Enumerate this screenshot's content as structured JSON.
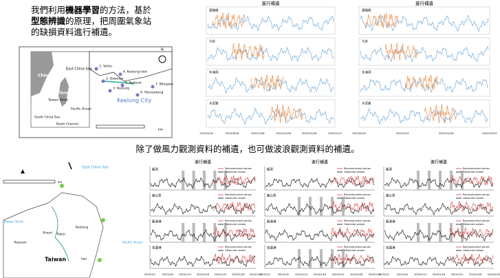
{
  "intro": {
    "l1a": "我們利用",
    "l1b": "機器學習",
    "l1c": "的方法，基於",
    "l2a": "型態辨識",
    "l2b": "的原理，把周圍氣象站",
    "l3": "的缺損資料進行補遺。"
  },
  "middle_text": "除了做風力觀測資料的補遺，也可做波浪觀測資料的補遺。",
  "top_panels": [
    {
      "title": "進行補遺",
      "labels": [
        "基隆嶼",
        "九份",
        "水湳洞",
        "大武崙"
      ],
      "dates": [
        "2022/9/16",
        "2022/9/26",
        "2022/10/6",
        "2022/10/16",
        "2022/10/26",
        "2022/11/5"
      ]
    },
    {
      "title": "進行補遺",
      "labels": [
        "基隆嶼",
        "九份",
        "水湳洞",
        "大武崙"
      ],
      "dates": [
        "2022/9/16",
        "2022/10/1",
        "2022/10/16",
        "2022/10/31"
      ]
    }
  ],
  "bottom_panels": [
    {
      "title": "進行補遺",
      "labels": [
        "龍洞",
        "龜山島",
        "蘇澳港",
        "花蓮港"
      ]
    },
    {
      "title": "進行補遺",
      "labels": [
        "龍洞",
        "龜山島",
        "蘇澳港",
        "花蓮港"
      ]
    },
    {
      "title": "進行補遺",
      "labels": [
        "龍洞",
        "龜山島",
        "蘇澳港",
        "花蓮港"
      ]
    }
  ],
  "legend": {
    "reconstructed": "Reconstructed values",
    "observed": "Observed values"
  },
  "bottom_dates": [
    "2023/1/1",
    "2023/1/6",
    "2023/1/11",
    "2023/1/16",
    "2023/1/21",
    "2023/1/26",
    "2023/1/31"
  ],
  "map1": {
    "china": "China",
    "ecs": "East China Sea",
    "strait": "Taiwan Strait",
    "taiwan": "Taiwan",
    "pacific": "Pacific Ocean",
    "scs": "South China Sea",
    "bashi": "Bashi Channel",
    "city": "Keelung City",
    "stations": [
      "1. Yehliu",
      "2. Dawulun",
      "3. Keelung",
      "4. Keelung Islet",
      "5. Badouzi",
      "6. Shenaokeng",
      "7. Bitoujiao"
    ],
    "north": "N",
    "km": "km"
  },
  "map2": {
    "ecs": "East China Sea",
    "strait": "Taiwan Strait",
    "pacific": "Pacific Ocean",
    "taiwan": "Taiwan",
    "taoyuan": "Taoyuan",
    "taipei": "Taipei",
    "keelung": "Keelung",
    "xinpei": "Xinpei",
    "ilan": "Ilan",
    "km": "km"
  }
}
